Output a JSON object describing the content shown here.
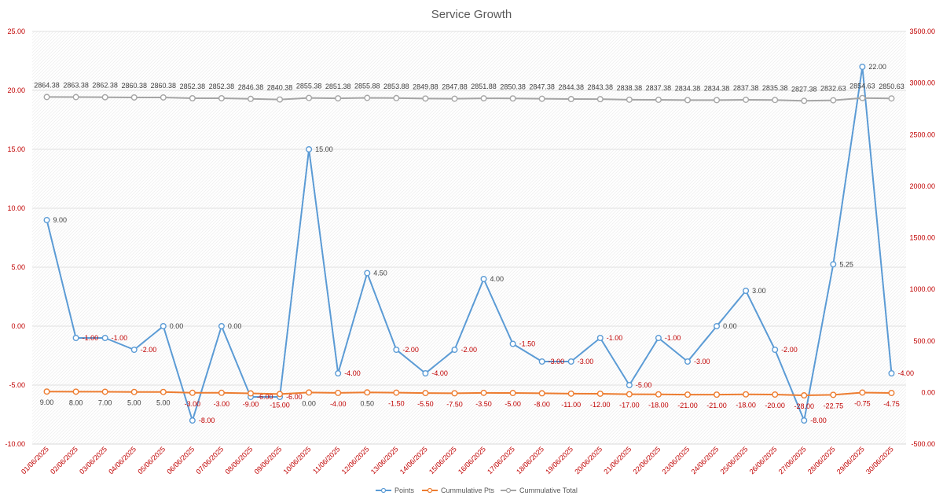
{
  "chart_data": {
    "type": "line",
    "title": "Service Growth",
    "categories": [
      "01/06/2025",
      "02/06/2025",
      "03/06/2025",
      "04/06/2025",
      "05/06/2025",
      "06/06/2025",
      "07/06/2025",
      "08/06/2025",
      "09/06/2025",
      "10/06/2025",
      "11/06/2025",
      "12/06/2025",
      "13/06/2025",
      "14/06/2025",
      "15/06/2025",
      "16/06/2025",
      "17/06/2025",
      "18/06/2025",
      "19/06/2025",
      "20/06/2025",
      "21/06/2025",
      "22/06/2025",
      "23/06/2025",
      "24/06/2025",
      "25/06/2025",
      "26/06/2025",
      "27/06/2025",
      "28/06/2025",
      "29/06/2025",
      "30/06/2025"
    ],
    "y_left": {
      "min": -10,
      "max": 25,
      "step": 5,
      "tick_labels": [
        "-10.00",
        "-5.00",
        "0.00",
        "5.00",
        "10.00",
        "15.00",
        "20.00",
        "25.00"
      ]
    },
    "y_right": {
      "min": -500,
      "max": 3500,
      "step": 500,
      "tick_labels": [
        "-500.00",
        "0.00",
        "500.00",
        "1000.00",
        "1500.00",
        "2000.00",
        "2500.00",
        "3000.00",
        "3500.00"
      ]
    },
    "series": [
      {
        "name": "Points",
        "axis": "left",
        "color": "#5b9bd5",
        "values": [
          9,
          -1,
          -1,
          -2,
          0,
          -8,
          0,
          -6,
          -6,
          15,
          -4,
          4.5,
          -2,
          -4,
          -2,
          4,
          -1.5,
          -3,
          -3,
          -1,
          -5,
          -1,
          -3,
          0,
          3,
          -2,
          -8,
          5.25,
          22,
          -4
        ],
        "labels": [
          "9.00",
          "-1.00",
          "-1.00",
          "-2.00",
          "0.00",
          "-8.00",
          "0.00",
          "-6.00",
          "-6.00",
          "15.00",
          "-4.00",
          "4.50",
          "-2.00",
          "-4.00",
          "-2.00",
          "4.00",
          "-1.50",
          "-3.00",
          "-3.00",
          "-1.00",
          "-5.00",
          "-1.00",
          "-3.00",
          "0.00",
          "3.00",
          "-2.00",
          "-8.00",
          "5.25",
          "22.00",
          "-4.00"
        ]
      },
      {
        "name": "Cummulative Pts",
        "axis": "right",
        "color": "#ed7d31",
        "values": [
          9,
          8,
          7,
          5,
          5,
          -3,
          -3,
          -9,
          -15,
          0,
          -4,
          0.5,
          -1.5,
          -5.5,
          -7.5,
          -3.5,
          -5,
          -8,
          -11,
          -12,
          -17,
          -18,
          -21,
          -21,
          -18,
          -20,
          -28,
          -22.75,
          -0.75,
          -4.75
        ],
        "labels": [
          "9.00",
          "8.00",
          "7.00",
          "5.00",
          "5.00",
          "-3.00",
          "-3.00",
          "-9.00",
          "-15.00",
          "0.00",
          "-4.00",
          "0.50",
          "-1.50",
          "-5.50",
          "-7.50",
          "-3.50",
          "-5.00",
          "-8.00",
          "-11.00",
          "-12.00",
          "-17.00",
          "-18.00",
          "-21.00",
          "-21.00",
          "-18.00",
          "-20.00",
          "-28.00",
          "-22.75",
          "-0.75",
          "-4.75"
        ]
      },
      {
        "name": "Cummulative Total",
        "axis": "right",
        "color": "#a5a5a5",
        "values": [
          2864.38,
          2863.38,
          2862.38,
          2860.38,
          2860.38,
          2852.38,
          2852.38,
          2846.38,
          2840.38,
          2855.38,
          2851.38,
          2855.88,
          2853.88,
          2849.88,
          2847.88,
          2851.88,
          2850.38,
          2847.38,
          2844.38,
          2843.38,
          2838.38,
          2837.38,
          2834.38,
          2834.38,
          2837.38,
          2835.38,
          2827.38,
          2832.63,
          2854.63,
          2850.63
        ],
        "labels": [
          "2864.38",
          "2863.38",
          "2862.38",
          "2860.38",
          "2860.38",
          "2852.38",
          "2852.38",
          "2846.38",
          "2840.38",
          "2855.38",
          "2851.38",
          "2855.88",
          "2853.88",
          "2849.88",
          "2847.88",
          "2851.88",
          "2850.38",
          "2847.38",
          "2844.38",
          "2843.38",
          "2838.38",
          "2837.38",
          "2834.38",
          "2834.38",
          "2837.38",
          "2835.38",
          "2827.38",
          "2832.63",
          "2854.63",
          "2850.63"
        ]
      }
    ],
    "legend": {
      "position": "bottom"
    },
    "grid": true
  }
}
